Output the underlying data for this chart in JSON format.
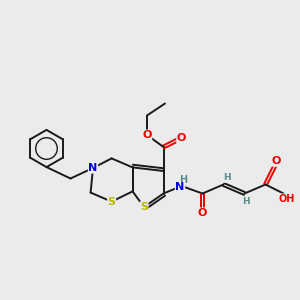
{
  "background_color": "#ebebeb",
  "bond_color": "#1a1a1a",
  "S_color": "#b8b800",
  "N_color": "#0000ee",
  "O_color": "#ee0000",
  "H_color": "#5a8a8a",
  "figsize": [
    3.0,
    3.0
  ],
  "dpi": 100,
  "xlim": [
    0,
    10
  ],
  "ylim": [
    0,
    10
  ]
}
